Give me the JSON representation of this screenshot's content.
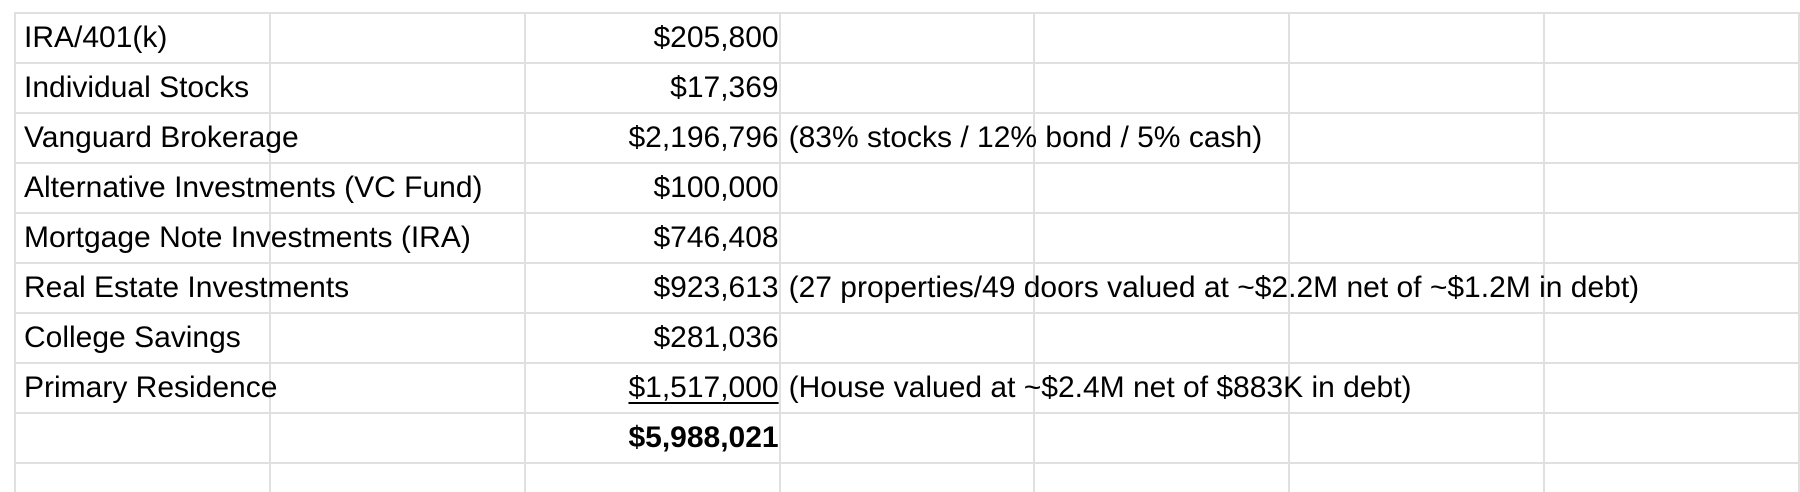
{
  "rows": [
    {
      "label": "IRA/401(k)",
      "value": "$205,800",
      "note": ""
    },
    {
      "label": "Individual Stocks",
      "value": "$17,369",
      "note": ""
    },
    {
      "label": "Vanguard Brokerage",
      "value": "$2,196,796",
      "note": "(83% stocks / 12% bond / 5% cash)"
    },
    {
      "label": "Alternative Investments (VC Fund)",
      "value": "$100,000",
      "note": ""
    },
    {
      "label": "Mortgage Note Investments (IRA)",
      "value": "$746,408",
      "note": ""
    },
    {
      "label": "Real Estate Investments",
      "value": "$923,613",
      "note": "(27 properties/49 doors valued at ~$2.2M net of ~$1.2M in debt)"
    },
    {
      "label": "College Savings",
      "value": "$281,036",
      "note": ""
    },
    {
      "label": "Primary Residence",
      "value": "$1,517,000",
      "note": "(House valued at ~$2.4M net of $883K in debt)"
    }
  ],
  "total": {
    "label": "",
    "value": "$5,988,021"
  },
  "colors": {
    "grid": "#e0e0e0",
    "text": "#000000",
    "background": "#ffffff"
  }
}
